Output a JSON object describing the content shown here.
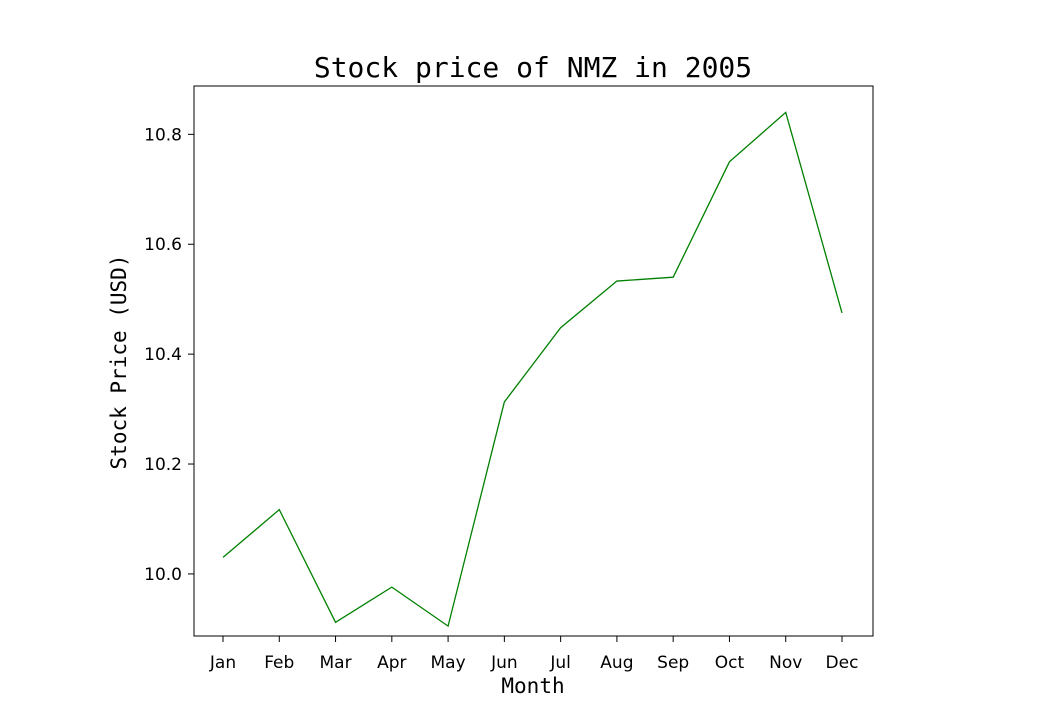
{
  "chart_data": {
    "type": "line",
    "title": "Stock price of NMZ in 2005",
    "xlabel": "Month",
    "ylabel": "Stock Price (USD)",
    "categories": [
      "Jan",
      "Feb",
      "Mar",
      "Apr",
      "May",
      "Jun",
      "Jul",
      "Aug",
      "Sep",
      "Oct",
      "Nov",
      "Dec"
    ],
    "series": [
      {
        "values": [
          10.03,
          10.117,
          9.912,
          9.976,
          9.905,
          10.313,
          10.448,
          10.533,
          10.54,
          10.75,
          10.84,
          10.475
        ],
        "color": "#008000"
      }
    ],
    "ylim": [
      9.887,
      10.888
    ],
    "yticks": [
      10.0,
      10.2,
      10.4,
      10.6,
      10.8
    ],
    "ytick_labels": [
      "10.0",
      "10.2",
      "10.4",
      "10.6",
      "10.8"
    ],
    "grid": false,
    "legend": "none"
  }
}
